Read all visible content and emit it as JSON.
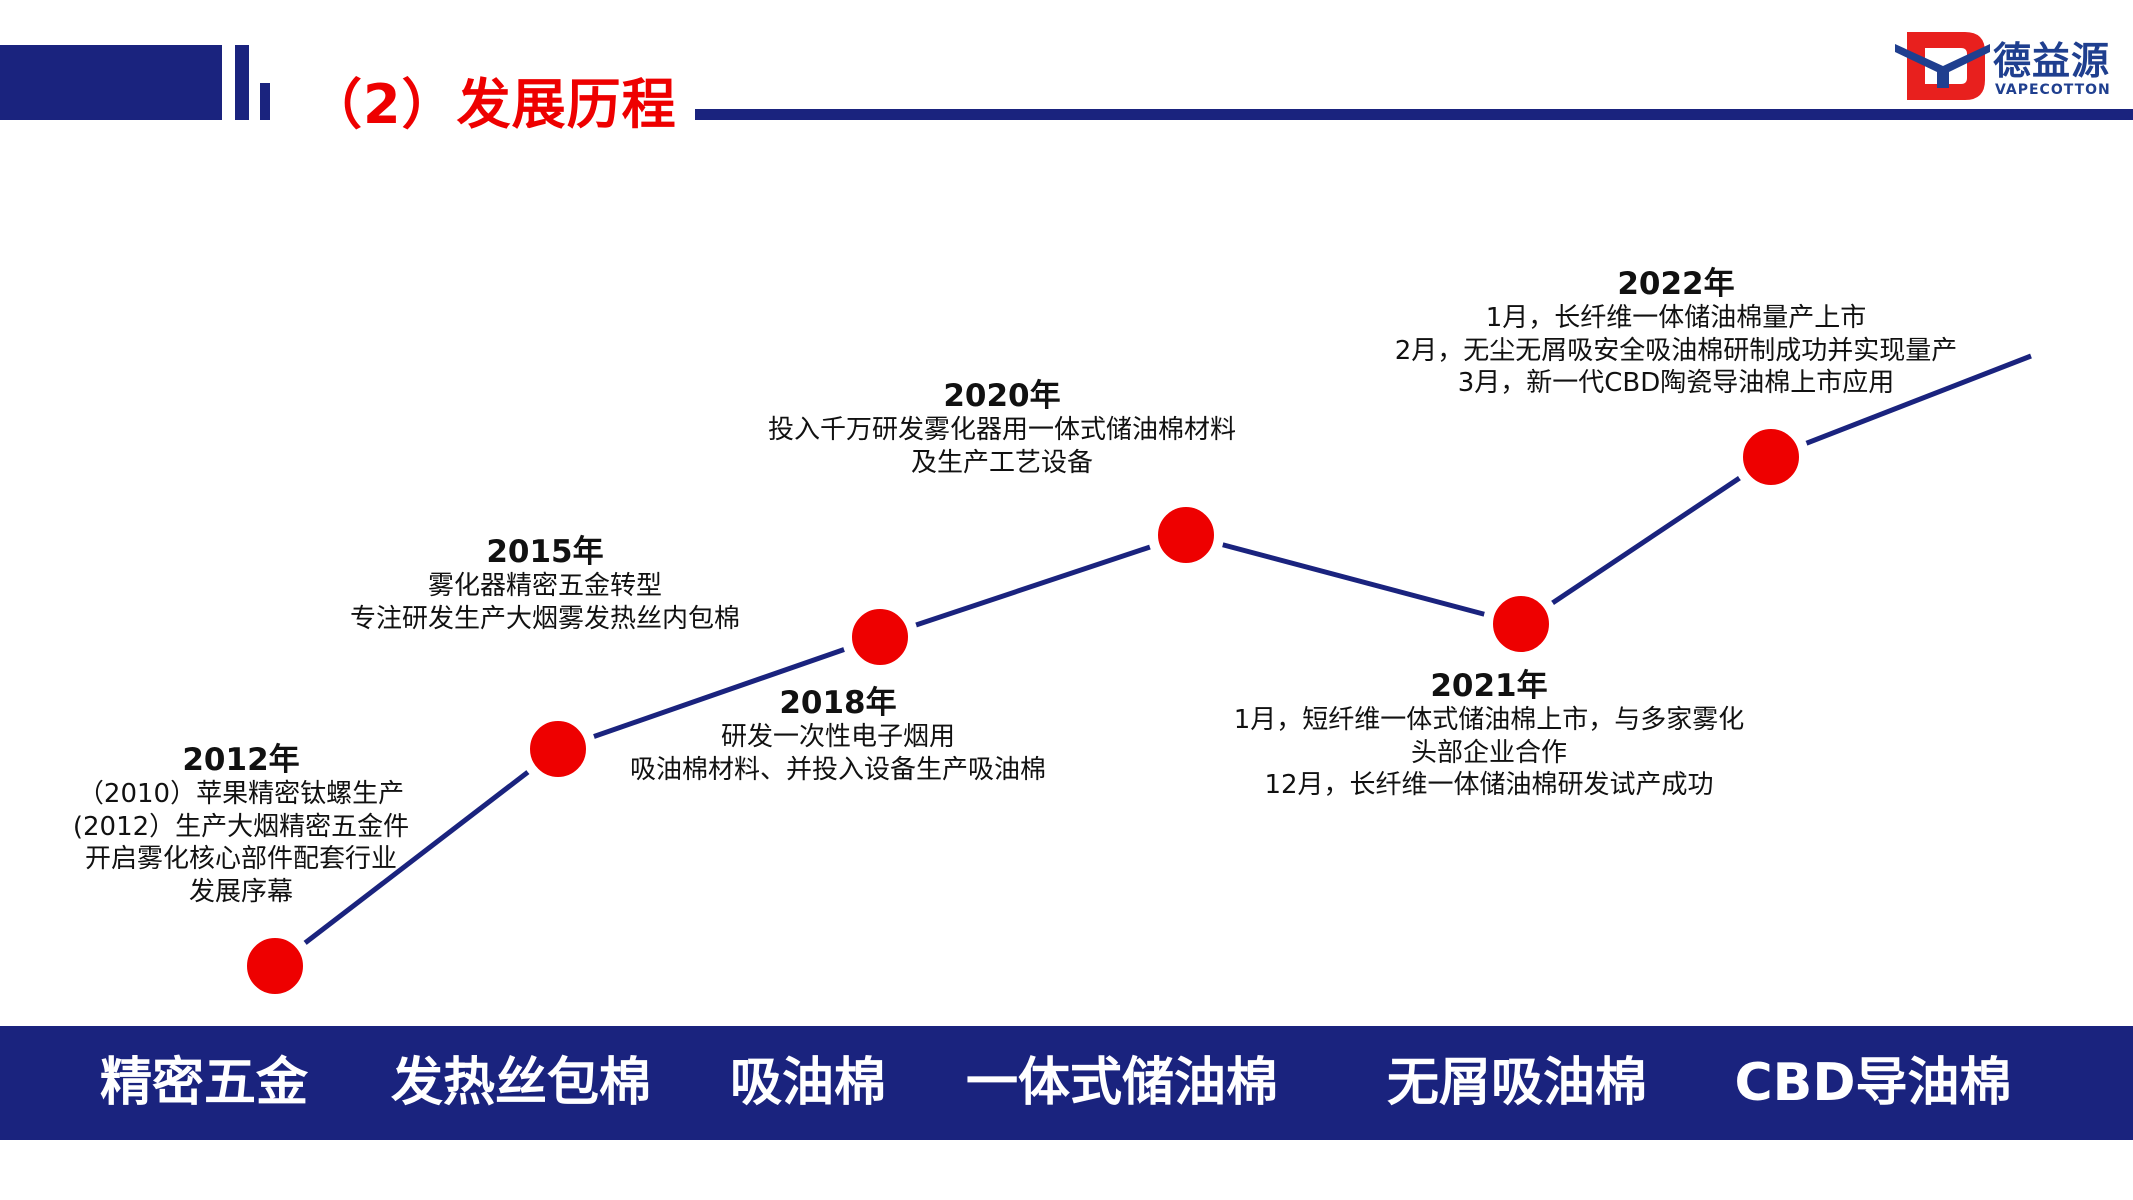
{
  "header": {
    "title": "（2）发展历程",
    "accent": "#1a237e",
    "title_color": "#ee0000"
  },
  "logo": {
    "name_cn": "德益源",
    "name_en": "VAPECOTTON"
  },
  "timeline": [
    {
      "year": "2012年",
      "lines": [
        "（2010）苹果精密钛螺生产",
        "(2012）生产大烟精密五金件",
        "开启雾化核心部件配套行业",
        "发展序幕"
      ]
    },
    {
      "year": "2015年",
      "lines": [
        "雾化器精密五金转型",
        "专注研发生产大烟雾发热丝内包棉"
      ]
    },
    {
      "year": "2018年",
      "lines": [
        "研发一次性电子烟用",
        "吸油棉材料、并投入设备生产吸油棉"
      ]
    },
    {
      "year": "2020年",
      "lines": [
        "投入千万研发雾化器用一体式储油棉材料",
        "及生产工艺设备"
      ]
    },
    {
      "year": "2021年",
      "lines": [
        "1月，短纤维一体式储油棉上市，与多家雾化",
        "头部企业合作",
        "12月，长纤维一体储油棉研发试产成功"
      ]
    },
    {
      "year": "2022年",
      "lines": [
        "1月，长纤维一体储油棉量产上市",
        "2月，无尘无屑吸安全吸油棉研制成功并实现量产",
        "3月，新一代CBD陶瓷导油棉上市应用"
      ]
    }
  ],
  "dot_color": "#ee0000",
  "products": [
    "精密五金",
    "发热丝包棉",
    "吸油棉",
    "一体式储油棉",
    "无屑吸油棉",
    "CBD导油棉"
  ]
}
